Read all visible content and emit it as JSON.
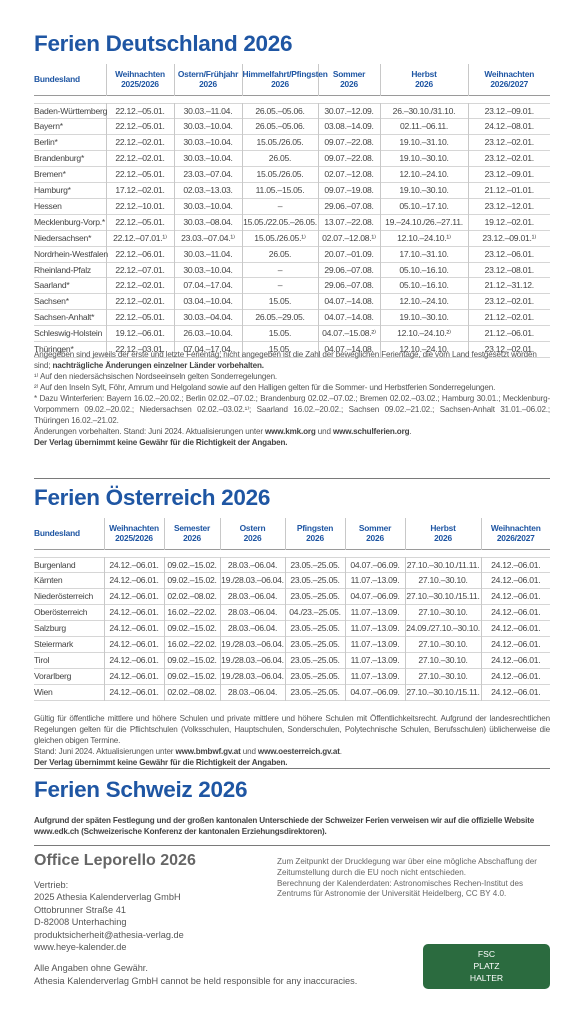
{
  "de": {
    "title": "Ferien Deutschland 2026",
    "headers": [
      "Bundesland",
      "Weihnachten 2025/2026",
      "Ostern/Frühjahr 2026",
      "Himmelfahrt/Pfingsten 2026",
      "Sommer 2026",
      "Herbst 2026",
      "Weihnachten 2026/2027"
    ],
    "rows": [
      [
        "Baden-Württemberg",
        "22.12.–05.01.",
        "30.03.–11.04.",
        "26.05.–05.06.",
        "30.07.–12.09.",
        "26.–30.10./31.10.",
        "23.12.–09.01."
      ],
      [
        "Bayern*",
        "22.12.–05.01.",
        "30.03.–10.04.",
        "26.05.–05.06.",
        "03.08.–14.09.",
        "02.11.–06.11.",
        "24.12.–08.01."
      ],
      [
        "Berlin*",
        "22.12.–02.01.",
        "30.03.–10.04.",
        "15.05./26.05.",
        "09.07.–22.08.",
        "19.10.–31.10.",
        "23.12.–02.01."
      ],
      [
        "Brandenburg*",
        "22.12.–02.01.",
        "30.03.–10.04.",
        "26.05.",
        "09.07.–22.08.",
        "19.10.–30.10.",
        "23.12.–02.01."
      ],
      [
        "Bremen*",
        "22.12.–05.01.",
        "23.03.–07.04.",
        "15.05./26.05.",
        "02.07.–12.08.",
        "12.10.–24.10.",
        "23.12.–09.01."
      ],
      [
        "Hamburg*",
        "17.12.–02.01.",
        "02.03.–13.03.",
        "11.05.–15.05.",
        "09.07.–19.08.",
        "19.10.–30.10.",
        "21.12.–01.01."
      ],
      [
        "Hessen",
        "22.12.–10.01.",
        "30.03.–10.04.",
        "–",
        "29.06.–07.08.",
        "05.10.–17.10.",
        "23.12.–12.01."
      ],
      [
        "Mecklenburg-Vorp.*",
        "22.12.–05.01.",
        "30.03.–08.04.",
        "15.05./22.05.–26.05.",
        "13.07.–22.08.",
        "19.–24.10./26.–27.11.",
        "19.12.–02.01."
      ],
      [
        "Niedersachsen*",
        "22.12.–07.01.¹⁾",
        "23.03.–07.04.¹⁾",
        "15.05./26.05.¹⁾",
        "02.07.–12.08.¹⁾",
        "12.10.–24.10.¹⁾",
        "23.12.–09.01.¹⁾"
      ],
      [
        "Nordrhein-Westfalen",
        "22.12.–06.01.",
        "30.03.–11.04.",
        "26.05.",
        "20.07.–01.09.",
        "17.10.–31.10.",
        "23.12.–06.01."
      ],
      [
        "Rheinland-Pfalz",
        "22.12.–07.01.",
        "30.03.–10.04.",
        "–",
        "29.06.–07.08.",
        "05.10.–16.10.",
        "23.12.–08.01."
      ],
      [
        "Saarland*",
        "22.12.–02.01.",
        "07.04.–17.04.",
        "–",
        "29.06.–07.08.",
        "05.10.–16.10.",
        "21.12.–31.12."
      ],
      [
        "Sachsen*",
        "22.12.–02.01.",
        "03.04.–10.04.",
        "15.05.",
        "04.07.–14.08.",
        "12.10.–24.10.",
        "23.12.–02.01."
      ],
      [
        "Sachsen-Anhalt*",
        "22.12.–05.01.",
        "30.03.–04.04.",
        "26.05.–29.05.",
        "04.07.–14.08.",
        "19.10.–30.10.",
        "21.12.–02.01."
      ],
      [
        "Schleswig-Holstein",
        "19.12.–06.01.",
        "26.03.–10.04.",
        "15.05.",
        "04.07.–15.08.²⁾",
        "12.10.–24.10.²⁾",
        "21.12.–06.01."
      ],
      [
        "Thüringen*",
        "22.12.–03.01.",
        "07.04.–17.04.",
        "15.05.",
        "04.07.–14.08.",
        "12.10.–24.10.",
        "23.12.–02.01."
      ]
    ],
    "note1": "Angegeben sind jeweils der erste und letzte Ferientag; nicht angegeben ist die Zahl der beweglichen Ferientage, die vom Land festgesetzt worden sind;",
    "note1_bold": "nachträgliche Änderungen einzelner Länder vorbehalten.",
    "fn1": "¹⁾ Auf den niedersächsischen Nordseeinseln gelten Sonderregelungen.",
    "fn2": "²⁾ Auf den Inseln Sylt, Föhr, Amrum und Helgoland sowie auf den Halligen gelten für die Sommer- und Herbstferien Sonderregelungen.",
    "winter": "* Dazu Winterferien: Bayern 16.02.–20.02.; Berlin 02.02.–07.02.; Brandenburg 02.02.–07.02.; Bremen 02.02.–03.02.; Hamburg 30.01.; Mecklenburg-Vorpommern 09.02.–20.02.; Niedersachsen 02.02.–03.02.¹⁾; Saarland 16.02.–20.02.; Sachsen 09.02.–21.02.; Sachsen-Anhalt 31.01.–06.02.; Thüringen 16.02.–21.02.",
    "changes_prefix": "Änderungen vorbehalten. Stand: Juni 2024. Aktualisierungen unter ",
    "link1": "www.kmk.org",
    "changes_and": " und ",
    "link2": "www.schulferien.org",
    "changes_suffix": ".",
    "disclaimer": "Der Verlag übernimmt keine Gewähr für die Richtigkeit der Angaben."
  },
  "at": {
    "title": "Ferien Österreich 2026",
    "headers": [
      "Bundesland",
      "Weihnachten 2025/2026",
      "Semester 2026",
      "Ostern 2026",
      "Pfingsten 2026",
      "Sommer 2026",
      "Herbst 2026",
      "Weihnachten 2026/2027"
    ],
    "rows": [
      [
        "Burgenland",
        "24.12.–06.01.",
        "09.02.–15.02.",
        "28.03.–06.04.",
        "23.05.–25.05.",
        "04.07.–06.09.",
        "27.10.–30.10./11.11.",
        "24.12.–06.01."
      ],
      [
        "Kärnten",
        "24.12.–06.01.",
        "09.02.–15.02.",
        "19./28.03.–06.04.",
        "23.05.–25.05.",
        "11.07.–13.09.",
        "27.10.–30.10.",
        "24.12.–06.01."
      ],
      [
        "Niederösterreich",
        "24.12.–06.01.",
        "02.02.–08.02.",
        "28.03.–06.04.",
        "23.05.–25.05.",
        "04.07.–06.09.",
        "27.10.–30.10./15.11.",
        "24.12.–06.01."
      ],
      [
        "Oberösterreich",
        "24.12.–06.01.",
        "16.02.–22.02.",
        "28.03.–06.04.",
        "04./23.–25.05.",
        "11.07.–13.09.",
        "27.10.–30.10.",
        "24.12.–06.01."
      ],
      [
        "Salzburg",
        "24.12.–06.01.",
        "09.02.–15.02.",
        "28.03.–06.04.",
        "23.05.–25.05.",
        "11.07.–13.09.",
        "24.09./27.10.–30.10.",
        "24.12.–06.01."
      ],
      [
        "Steiermark",
        "24.12.–06.01.",
        "16.02.–22.02.",
        "19./28.03.–06.04.",
        "23.05.–25.05.",
        "11.07.–13.09.",
        "27.10.–30.10.",
        "24.12.–06.01."
      ],
      [
        "Tirol",
        "24.12.–06.01.",
        "09.02.–15.02.",
        "19./28.03.–06.04.",
        "23.05.–25.05.",
        "11.07.–13.09.",
        "27.10.–30.10.",
        "24.12.–06.01."
      ],
      [
        "Vorarlberg",
        "24.12.–06.01.",
        "09.02.–15.02.",
        "19./28.03.–06.04.",
        "23.05.–25.05.",
        "11.07.–13.09.",
        "27.10.–30.10.",
        "24.12.–06.01."
      ],
      [
        "Wien",
        "24.12.–06.01.",
        "02.02.–08.02.",
        "28.03.–06.04.",
        "23.05.–25.05.",
        "04.07.–06.09.",
        "27.10.–30.10./15.11.",
        "24.12.–06.01."
      ]
    ],
    "note1": "Gültig für öffentliche mittlere und höhere Schulen und private mittlere und höhere Schulen mit Öffentlichkeitsrecht. Aufgrund der landesrechtlichen Regelungen gelten für die Pflichtschulen (Volksschulen, Hauptschulen, Sonderschulen, Polytechnische Schulen, Berufsschulen) üblicherweise die gleichen obigen Termine.",
    "stand_prefix": "Stand: Juni 2024. Aktualisierungen unter ",
    "link1": "www.bmbwf.gv.at",
    "stand_and": " und ",
    "link2": "www.oesterreich.gv.at",
    "stand_suffix": ".",
    "disclaimer": "Der Verlag übernimmt keine Gewähr für die Richtigkeit der Angaben."
  },
  "ch": {
    "title": "Ferien Schweiz 2026",
    "text": "Aufgrund der späten Festlegung und der großen kantonalen Unterschiede der Schweizer Ferien verweisen wir auf die offizielle Website www.edk.ch (Schweizerische Konferenz der kantonalen Erziehungsdirektoren)."
  },
  "imprint": {
    "product": "Office Leporello 2026",
    "lines": [
      "Vertrieb:",
      "2025 Athesia Kalenderverlag GmbH",
      "Ottobrunner Straße 41",
      "D-82008 Unterhaching",
      "produktsicherheit@athesia-verlag.de",
      "www.heye-kalender.de"
    ],
    "right": [
      "Zum Zeitpunkt der Drucklegung war über eine mögliche Abschaffung der Zeitumstellung durch die EU noch nicht entschieden.",
      "Berechnung der Kalenderdaten: Astronomisches Rechen-Institut des Zentrums für Astronomie der Universität Heidelberg, CC BY 4.0."
    ],
    "footer1": "Alle Angaben ohne Gewähr.",
    "footer2": "Athesia Kalenderverlag GmbH cannot be held responsible for any inaccuracies.",
    "fsc": [
      "FSC",
      "PLATZ",
      "HALTER"
    ]
  },
  "colors": {
    "accent": "#1f56a3",
    "fsc_green": "#2b6b3f",
    "rule": "#7a7a7a"
  }
}
